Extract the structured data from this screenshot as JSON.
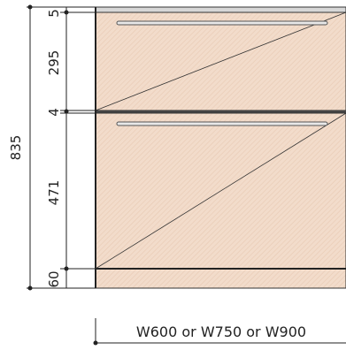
{
  "drawing": {
    "overall_height": "835",
    "segments": [
      "5",
      "295",
      "4",
      "471",
      "60"
    ],
    "width_label": "W600 or W750 or W900"
  },
  "colors": {
    "panel_fill": "#f2dccb",
    "panel_hatch": "#e8c9b2",
    "line": "#222222",
    "handle": "#555555"
  }
}
